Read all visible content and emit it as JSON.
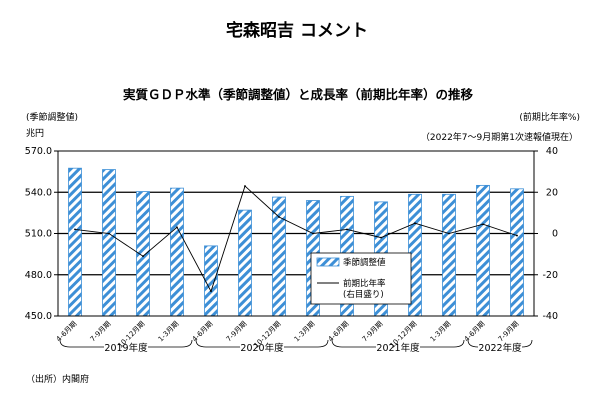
{
  "header": {
    "title": "宅森昭吉 コメント"
  },
  "source": "（出所）内閣府",
  "chart_data": {
    "type": "bar",
    "title": "実質ＧＤＰ水準（季節調整値）と成長率（前期比年率）の推移",
    "note": "（2022年7～9月期第1次速報値現在）",
    "y_left_caption": "(季節調整値)",
    "y_left_unit": "兆円",
    "y_right_caption": "(前期比年率%)",
    "ylim_left": [
      450,
      570
    ],
    "left_ticks": [
      "450.0",
      "480.0",
      "510.0",
      "540.0",
      "570.0"
    ],
    "ylim_right": [
      -40,
      40
    ],
    "right_ticks": [
      "-40",
      "-20",
      "0",
      "20",
      "40"
    ],
    "grid": true,
    "legend_position": "center",
    "categories": [
      "4-6月期",
      "7-9月期",
      "10-12月期",
      "1-3月期",
      "4-6月期",
      "7-9月期",
      "10-12月期",
      "1-3月期",
      "4-6月期",
      "7-9月期",
      "10-12月期",
      "1-3月期",
      "4-6月期",
      "7-9月期"
    ],
    "year_groups": [
      {
        "label": "2019年度",
        "start": 0,
        "end": 3
      },
      {
        "label": "2020年度",
        "start": 4,
        "end": 7
      },
      {
        "label": "2021年度",
        "start": 8,
        "end": 11
      },
      {
        "label": "2022年度",
        "start": 12,
        "end": 13
      }
    ],
    "series": [
      {
        "name": "季節調整値",
        "type": "bar",
        "axis": "left",
        "color": "#3d8fd6",
        "values": [
          557.5,
          556.5,
          540.5,
          543.0,
          501.0,
          527.0,
          536.5,
          534.0,
          537.0,
          533.0,
          538.5,
          538.5,
          545.0,
          542.5
        ]
      },
      {
        "name": "前期比年率\n(右目盛り)",
        "type": "line",
        "axis": "right",
        "color": "#000000",
        "values": [
          2.0,
          0.0,
          -11.0,
          3.0,
          -28.0,
          23.0,
          8.0,
          0.0,
          2.0,
          -2.0,
          5.0,
          0.0,
          4.5,
          -1.0
        ]
      }
    ]
  }
}
